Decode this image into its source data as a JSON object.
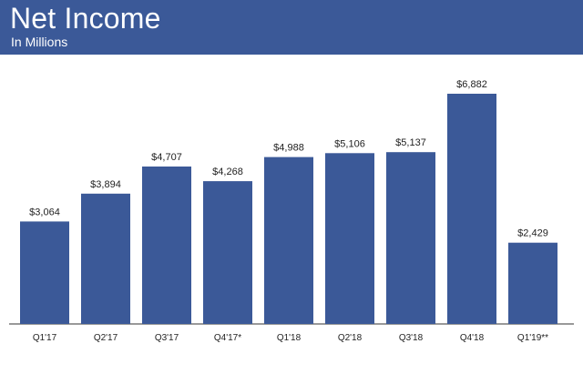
{
  "header": {
    "title": "Net Income",
    "subtitle": "In Millions"
  },
  "colors": {
    "header_bg": "#3b5998",
    "bar": "#3b5998",
    "axis": "#333333",
    "text": "#222222"
  },
  "chart_data": {
    "type": "bar",
    "categories": [
      "Q1'17",
      "Q2'17",
      "Q3'17",
      "Q4'17*",
      "Q1'18",
      "Q2'18",
      "Q3'18",
      "Q4'18",
      "Q1'19**"
    ],
    "values": [
      3064,
      3894,
      4707,
      4268,
      4988,
      5106,
      5137,
      6882,
      2429
    ],
    "value_labels": [
      "$3,064",
      "$3,894",
      "$4,707",
      "$4,268",
      "$4,988",
      "$5,106",
      "$5,137",
      "$6,882",
      "$2,429"
    ],
    "title": "Net Income",
    "subtitle": "In Millions",
    "xlabel": "",
    "ylabel": "",
    "ylim": [
      0,
      7000
    ],
    "grid": false,
    "legend": "none"
  }
}
